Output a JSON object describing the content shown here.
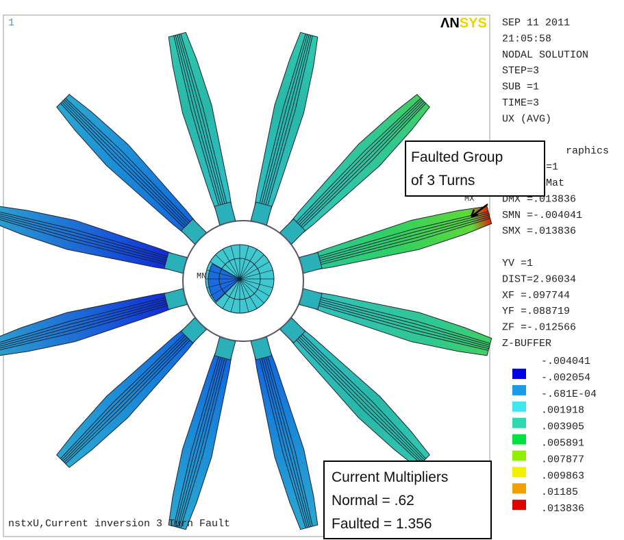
{
  "viewport": {
    "window_number": "1",
    "logo_dark": "ΛN",
    "logo_light": "SYS",
    "min_label": "MN",
    "max_label": "MX",
    "caption": "nstxU,Current inversion 3 Turn Fault"
  },
  "info_lines": [
    "SEP 11 2011",
    "21:05:58",
    "NODAL SOLUTION",
    "STEP=3",
    "SUB =1",
    "TIME=3",
    "UX        (AVG)",
    "DMX =.013836",
    "SMN =-.004041",
    "SMX =.013836",
    "YV  =1",
    "DIST=2.96034",
    "XF  =.097744",
    "YF  =.088719",
    "ZF  =-.012566",
    "Z-BUFFER"
  ],
  "hidden_fragments": [
    "raphics",
    "=1",
    "Mat"
  ],
  "legend": {
    "labels": [
      "-.004041",
      "-.002054",
      "-.681E-04",
      ".001918",
      ".003905",
      ".005891",
      ".007877",
      ".009863",
      ".01185",
      ".013836"
    ],
    "colors": [
      "#0000e0",
      "#1a9ae8",
      "#40e8ee",
      "#30d8b0",
      "#00e040",
      "#90f000",
      "#f0f000",
      "#f0a000",
      "#e00000"
    ]
  },
  "callouts": {
    "faulted_group": [
      "Faulted Group",
      "of 3 Turns"
    ],
    "multipliers": [
      "Current Multipliers",
      "Normal = .62",
      "Faulted = 1.356"
    ]
  }
}
